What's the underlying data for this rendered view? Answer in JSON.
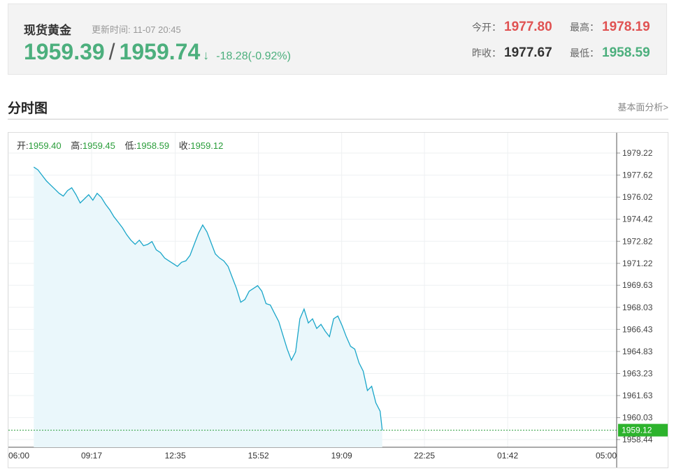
{
  "header": {
    "title": "现货黄金",
    "update_label": "更新时间:",
    "update_time": "11-07 20:45",
    "bid": "1959.39",
    "slash": "/",
    "ask": "1959.74",
    "arrow": "↓",
    "change": "-18.28(-0.92%)",
    "open_label": "今开：",
    "open_value": "1977.80",
    "high_label": "最高：",
    "high_value": "1978.19",
    "prev_close_label": "昨收：",
    "prev_close_value": "1977.67",
    "low_label": "最低：",
    "low_value": "1958.59",
    "colors": {
      "up": "#e05252",
      "down": "#4caf7d",
      "neutral": "#333333"
    }
  },
  "section": {
    "title": "分时图",
    "fundamental_link": "基本面分析>"
  },
  "chart_info": {
    "open_label": "开:",
    "open_value": "1959.40",
    "high_label": "高:",
    "high_value": "1959.45",
    "low_label": "低:",
    "low_value": "1958.59",
    "close_label": "收:",
    "close_value": "1959.12"
  },
  "chart_data": {
    "type": "area",
    "xlabel": "",
    "ylabel": "",
    "x_ticks": [
      "06:00",
      "09:17",
      "12:35",
      "15:52",
      "19:09",
      "22:25",
      "01:42",
      "05:00"
    ],
    "y_ticks": [
      "1979.22",
      "1977.62",
      "1976.02",
      "1974.42",
      "1972.82",
      "1971.22",
      "1969.63",
      "1968.03",
      "1966.43",
      "1964.83",
      "1963.23",
      "1961.63",
      "1960.03",
      "1958.44"
    ],
    "ylim": [
      1958.44,
      1979.22
    ],
    "current_price": "1959.12",
    "line_color": "#1aa6c9",
    "fill_color": "#eaf7fb",
    "series": [
      {
        "x": [
          "07:00",
          "07:10",
          "07:20",
          "07:30",
          "07:40",
          "07:50",
          "08:00",
          "08:10",
          "08:20",
          "08:30",
          "08:40",
          "08:50",
          "09:00",
          "09:10",
          "09:20",
          "09:30",
          "09:40",
          "09:50",
          "10:00",
          "10:10",
          "10:20",
          "10:30",
          "10:40",
          "10:50",
          "11:00",
          "11:10",
          "11:20",
          "11:30",
          "11:40",
          "11:50",
          "12:00",
          "12:10",
          "12:20",
          "12:30",
          "12:40",
          "12:50",
          "13:00",
          "13:10",
          "13:20",
          "13:30",
          "13:40",
          "13:50",
          "14:00",
          "14:10",
          "14:20",
          "14:30",
          "14:40",
          "14:50",
          "15:00",
          "15:10",
          "15:20",
          "15:30",
          "15:40",
          "15:50",
          "16:00",
          "16:10",
          "16:20",
          "16:30",
          "16:40",
          "16:50",
          "17:00",
          "17:10",
          "17:20",
          "17:30",
          "17:40",
          "17:50",
          "18:00",
          "18:10",
          "18:20",
          "18:30",
          "18:40",
          "18:50",
          "19:00",
          "19:10",
          "19:20",
          "19:30",
          "19:40",
          "19:50",
          "20:00",
          "20:10",
          "20:20",
          "20:30",
          "20:40",
          "20:45"
        ],
        "values": [
          1978.2,
          1978.0,
          1977.6,
          1977.2,
          1976.9,
          1976.6,
          1976.3,
          1976.1,
          1976.5,
          1976.7,
          1976.2,
          1975.6,
          1975.9,
          1976.2,
          1975.8,
          1976.3,
          1976.0,
          1975.5,
          1975.1,
          1974.6,
          1974.2,
          1973.8,
          1973.3,
          1972.9,
          1972.6,
          1972.9,
          1972.5,
          1972.6,
          1972.8,
          1972.2,
          1972.0,
          1971.6,
          1971.4,
          1971.2,
          1971.0,
          1971.3,
          1971.4,
          1971.8,
          1972.6,
          1973.4,
          1974.0,
          1973.5,
          1972.7,
          1971.9,
          1971.6,
          1971.4,
          1971.0,
          1970.2,
          1969.4,
          1968.4,
          1968.6,
          1969.2,
          1969.4,
          1969.6,
          1969.2,
          1968.3,
          1968.2,
          1967.6,
          1967.0,
          1966.0,
          1965.0,
          1964.2,
          1964.8,
          1967.2,
          1967.9,
          1966.9,
          1967.2,
          1966.5,
          1966.8,
          1966.3,
          1965.9,
          1967.2,
          1967.4,
          1966.7,
          1965.9,
          1965.2,
          1965.0,
          1964.0,
          1963.4,
          1962.0,
          1962.3,
          1961.1,
          1960.5,
          1959.12
        ]
      }
    ]
  }
}
